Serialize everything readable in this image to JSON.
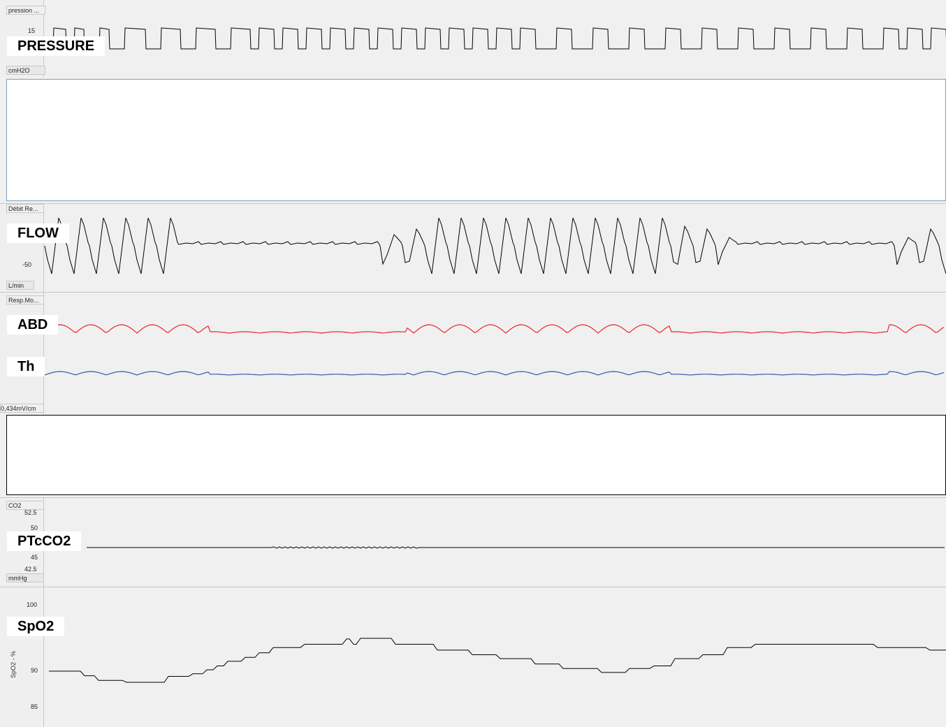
{
  "channels": {
    "pressure": {
      "header": "pression ...",
      "tick_15": "15",
      "unit": "cmH2O",
      "signal": "PRESSURE"
    },
    "flow": {
      "header": "Débit Re...",
      "tick_neg50": "-50",
      "unit": "L/min",
      "signal": "FLOW"
    },
    "resp": {
      "header": "Resp.Mo...",
      "signal_abd": "ABD",
      "signal_th": "Th",
      "scale": "0,434mV/cm"
    },
    "co2": {
      "header": "CO2",
      "tick_top": "52.5",
      "tick_50": "50",
      "tick_45": "45",
      "tick_425": "42.5",
      "unit": "mmHg",
      "signal": "PTcCO2"
    },
    "spo2": {
      "tick_100": "100",
      "tick_90": "90",
      "tick_85": "85",
      "axis_title": "SpO2 - %",
      "signal": "SpO2"
    }
  },
  "colors": {
    "abd": "#e8262a",
    "th": "#2d5fa0",
    "trace": "#000000",
    "pane_border_blue": "#7a9cc6"
  }
}
